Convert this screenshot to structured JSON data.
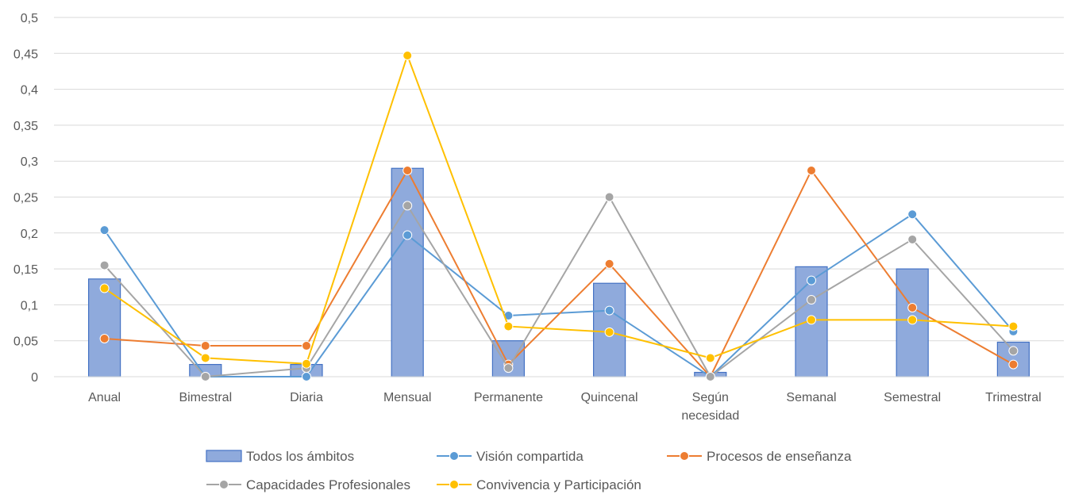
{
  "chart_data": {
    "type": "bar",
    "categories": [
      [
        "Anual"
      ],
      [
        "Bimestral"
      ],
      [
        "Diaria"
      ],
      [
        "Mensual"
      ],
      [
        "Permanente"
      ],
      [
        "Quincenal"
      ],
      [
        "Según",
        "necesidad"
      ],
      [
        "Semanal"
      ],
      [
        "Semestral"
      ],
      [
        "Trimestral"
      ]
    ],
    "ylim": [
      0,
      0.5
    ],
    "yticks": [
      "0",
      "0,05",
      "0,1",
      "0,15",
      "0,2",
      "0,25",
      "0,3",
      "0,35",
      "0,4",
      "0,45",
      "0,5"
    ],
    "grid": true,
    "legend_position": "bottom",
    "series": [
      {
        "name": "Todos los ámbitos",
        "type": "bar",
        "color": "#8faadc",
        "stroke": "#4472c4",
        "values": [
          0.136,
          0.017,
          0.017,
          0.29,
          0.05,
          0.13,
          0.006,
          0.153,
          0.15,
          0.048
        ]
      },
      {
        "name": "Visión compartida",
        "type": "line",
        "color": "#5b9bd5",
        "values": [
          0.204,
          0.0,
          0.0,
          0.197,
          0.085,
          0.092,
          0.0,
          0.134,
          0.226,
          0.063
        ]
      },
      {
        "name": "Procesos de enseñanza",
        "type": "line",
        "color": "#ed7d31",
        "values": [
          0.053,
          0.043,
          0.043,
          0.287,
          0.017,
          0.157,
          0.0,
          0.287,
          0.096,
          0.017
        ]
      },
      {
        "name": "Capacidades Profesionales",
        "type": "line",
        "color": "#a5a5a5",
        "values": [
          0.155,
          0.0,
          0.012,
          0.238,
          0.012,
          0.25,
          0.0,
          0.107,
          0.191,
          0.036
        ]
      },
      {
        "name": "Convivencia y Participación",
        "type": "line",
        "color": "#ffc000",
        "values": [
          0.123,
          0.026,
          0.018,
          0.447,
          0.07,
          0.062,
          0.026,
          0.079,
          0.079,
          0.07
        ]
      }
    ]
  }
}
